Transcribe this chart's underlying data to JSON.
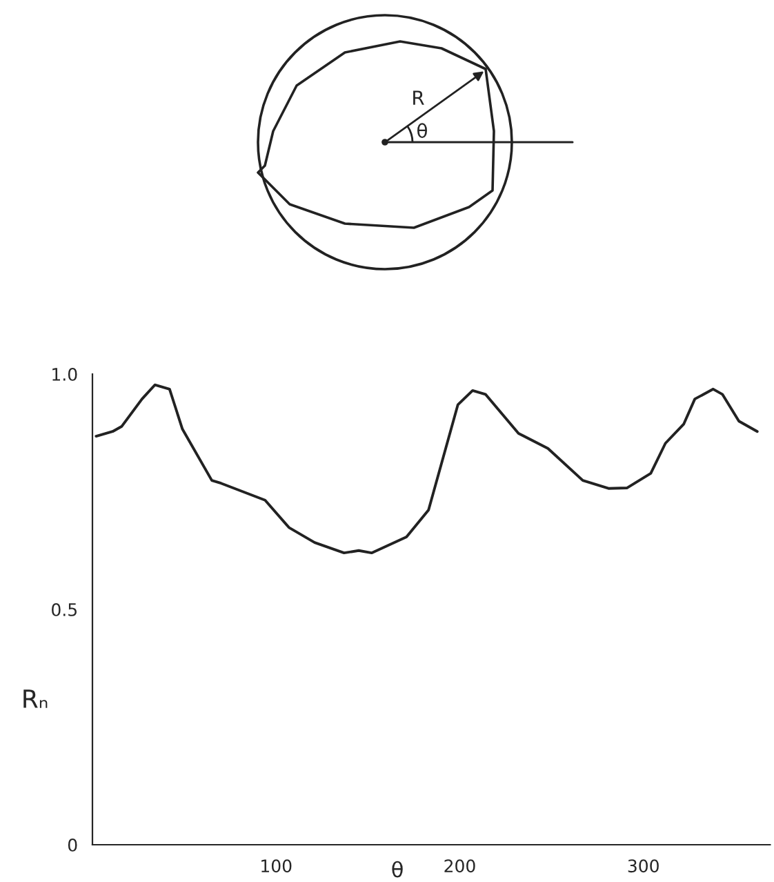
{
  "chart_data": {
    "type": "line",
    "xlabel": "θ",
    "ylabel": "Rₙ",
    "annotations": [
      "R",
      "θ"
    ],
    "x": [
      2,
      11,
      16,
      27,
      34,
      42,
      49,
      65,
      70,
      94,
      107,
      121,
      137,
      145,
      152,
      171,
      183,
      199,
      207,
      214,
      232,
      248,
      267,
      281,
      291,
      304,
      312,
      322,
      328,
      338,
      343,
      352,
      362
    ],
    "series": [
      {
        "color": "#222222",
        "values": [
          0.868,
          0.878,
          0.889,
          0.947,
          0.977,
          0.968,
          0.883,
          0.774,
          0.768,
          0.732,
          0.674,
          0.642,
          0.62,
          0.625,
          0.62,
          0.654,
          0.711,
          0.935,
          0.965,
          0.957,
          0.874,
          0.842,
          0.774,
          0.757,
          0.758,
          0.789,
          0.853,
          0.894,
          0.947,
          0.968,
          0.957,
          0.9,
          0.878
        ]
      }
    ],
    "xlim": [
      0,
      369
    ],
    "xticks": [
      100,
      200,
      300
    ],
    "ylim": [
      0,
      1.0
    ],
    "yticks": [
      0,
      0.5,
      {
        "value": 1.0,
        "label": "1.0"
      }
    ],
    "grid": false,
    "legend": false,
    "marker": "none",
    "line_style": "solid"
  }
}
